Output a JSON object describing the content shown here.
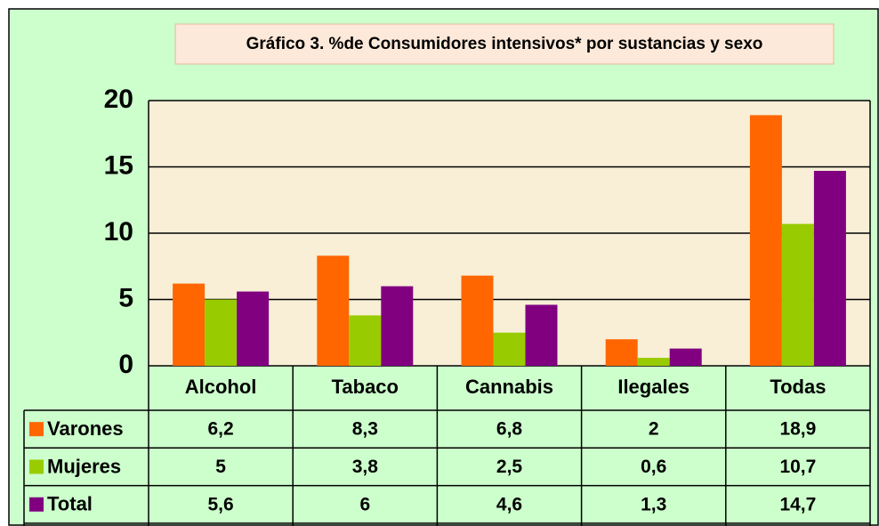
{
  "chart_data": {
    "type": "bar",
    "title": "Gráfico 3. %de Consumidores intensivos* por sustancias y sexo",
    "categories": [
      "Alcohol",
      "Tabaco",
      "Cannabis",
      "Ilegales",
      "Todas"
    ],
    "series": [
      {
        "name": "Varones",
        "color": "#ff6600",
        "values": [
          6.2,
          8.3,
          6.8,
          2,
          18.9
        ],
        "value_labels": [
          "6,2",
          "8,3",
          "6,8",
          "2",
          "18,9"
        ]
      },
      {
        "name": "Mujeres",
        "color": "#99cc00",
        "values": [
          5,
          3.8,
          2.5,
          0.6,
          10.7
        ],
        "value_labels": [
          "5",
          "3,8",
          "2,5",
          "0,6",
          "10,7"
        ]
      },
      {
        "name": "Total",
        "color": "#800080",
        "values": [
          5.6,
          6,
          4.6,
          1.3,
          14.7
        ],
        "value_labels": [
          "5,6",
          "6",
          "4,6",
          "1,3",
          "14,7"
        ]
      }
    ],
    "ylim": [
      0,
      20
    ],
    "yticks": [
      0,
      5,
      10,
      15,
      20
    ],
    "grid": true
  }
}
